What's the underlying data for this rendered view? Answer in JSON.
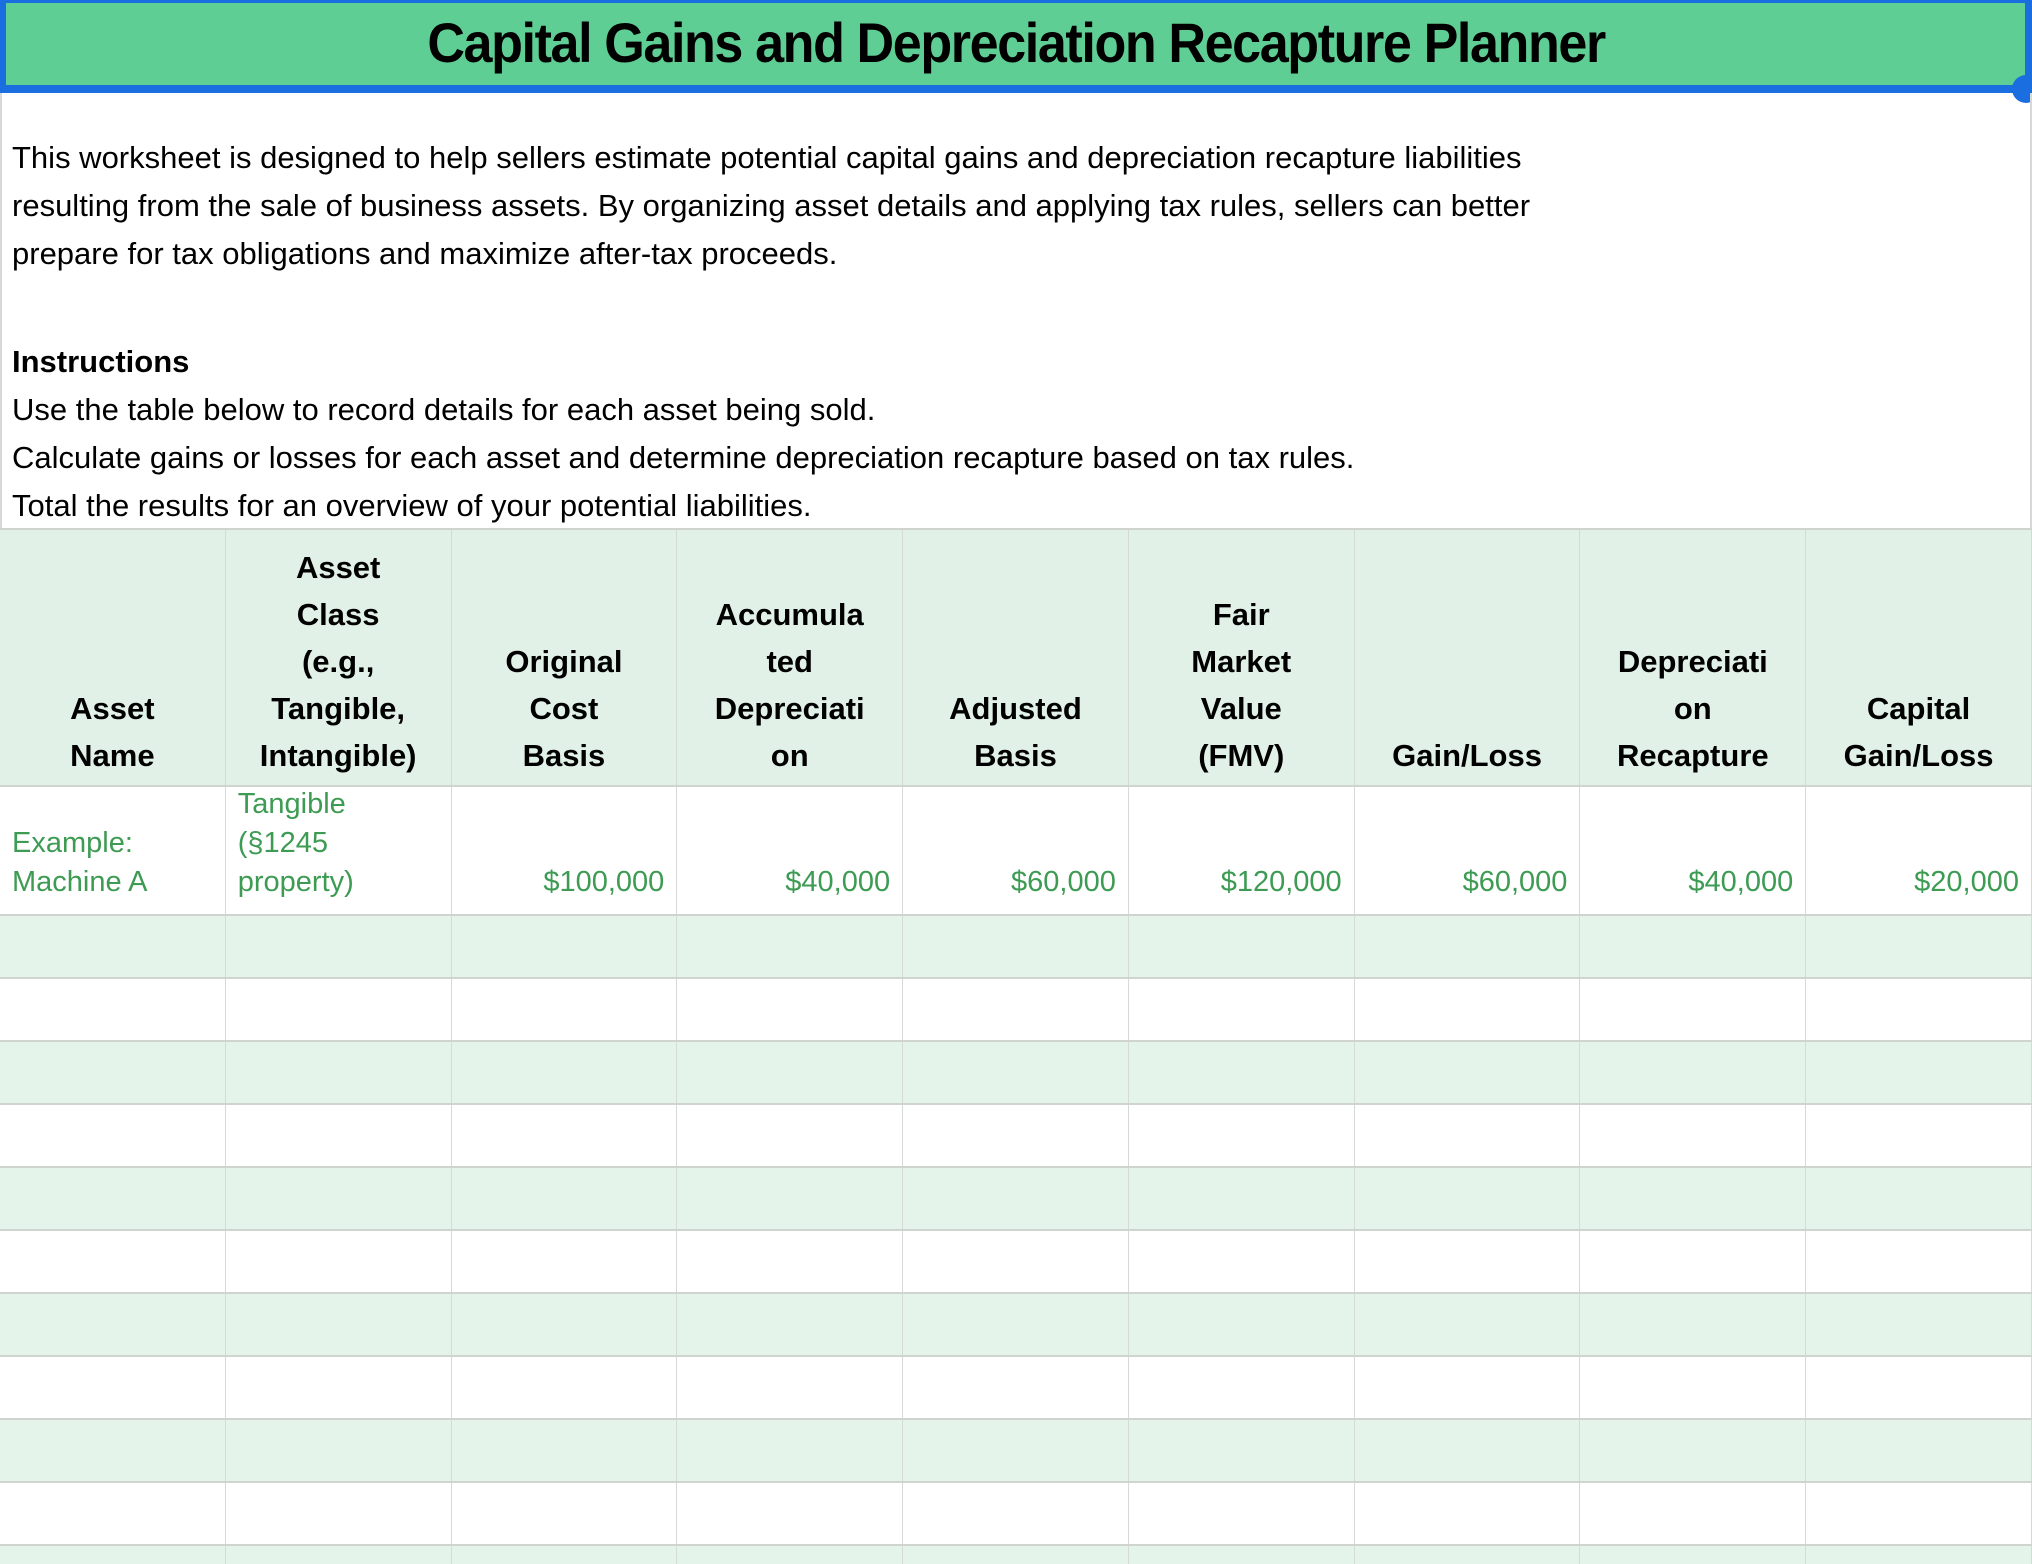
{
  "title": "Capital Gains and Depreciation Recapture Planner",
  "intro": "This worksheet is designed to help sellers estimate potential capital gains and depreciation recapture liabilities\nresulting from the sale of business assets. By organizing asset details and applying tax rules, sellers can better\nprepare for tax obligations and maximize after-tax proceeds.",
  "instructions": {
    "heading": "Instructions",
    "lines": "Use the table below to record details for each asset being sold.\nCalculate gains or losses for each asset and determine depreciation recapture based on tax rules.\nTotal the results for an overview of your potential liabilities."
  },
  "table": {
    "headers": [
      {
        "id": "asset_name",
        "label": "Asset\nName"
      },
      {
        "id": "asset_class",
        "label": "Asset\nClass\n(e.g.,\nTangible,\nIntangible)"
      },
      {
        "id": "original_cost_basis",
        "label": "Original\nCost\nBasis"
      },
      {
        "id": "accumulated_depreciation",
        "label": "Accumula\nted\nDepreciati\non"
      },
      {
        "id": "adjusted_basis",
        "label": "Adjusted\nBasis"
      },
      {
        "id": "fair_market_value",
        "label": "Fair\nMarket\nValue\n(FMV)"
      },
      {
        "id": "gain_loss",
        "label": "Gain/Loss"
      },
      {
        "id": "depreciation_recapture",
        "label": "Depreciati\non\nRecapture"
      },
      {
        "id": "capital_gain_loss",
        "label": "Capital\nGain/Loss"
      }
    ],
    "example_row": {
      "cells": [
        "Example:\nMachine A",
        "Tangible\n(§1245\nproperty)",
        "$100,000",
        "$40,000",
        "$60,000",
        "$120,000",
        "$60,000",
        "$40,000",
        "$20,000"
      ]
    },
    "empty_row_count": 10,
    "has_partial_bottom_row": true
  },
  "colors": {
    "banner_green": "#5fce95",
    "selection_blue": "#1b6ee0",
    "header_row_bg": "#e1f1e7",
    "band_row_bg": "#e5f4eb",
    "example_text_green": "#3d9b53",
    "gridline": "#d6dad6",
    "gridline_strong": "#cfd4cf"
  }
}
